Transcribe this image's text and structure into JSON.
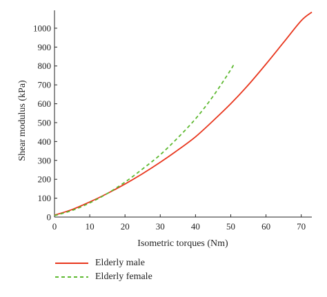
{
  "chart_data": {
    "type": "line",
    "xlabel": "Isometric torques (Nm)",
    "ylabel": "Shear modulus (kPa)",
    "xlim": [
      0,
      73
    ],
    "ylim": [
      0,
      1080
    ],
    "xticks": [
      0,
      10,
      20,
      30,
      40,
      50,
      60,
      70
    ],
    "yticks": [
      0,
      100,
      200,
      300,
      400,
      500,
      600,
      700,
      800,
      900,
      1000
    ],
    "grid": false,
    "legend_position": "bottom-left",
    "series": [
      {
        "name": "Elderly male",
        "color": "#e8351c",
        "dash": "solid",
        "x": [
          0,
          5,
          10,
          15,
          20,
          25,
          30,
          35,
          40,
          45,
          50,
          55,
          60,
          65,
          70,
          73
        ],
        "y": [
          10,
          40,
          80,
          125,
          175,
          230,
          290,
          355,
          425,
          510,
          600,
          700,
          810,
          925,
          1040,
          1085
        ]
      },
      {
        "name": "Elderly female",
        "color": "#5cb82e",
        "dash": "dashed",
        "x": [
          0,
          5,
          10,
          15,
          20,
          25,
          30,
          35,
          40,
          45,
          50,
          51
        ],
        "y": [
          8,
          35,
          75,
          125,
          185,
          255,
          330,
          420,
          520,
          640,
          780,
          815
        ]
      }
    ]
  }
}
